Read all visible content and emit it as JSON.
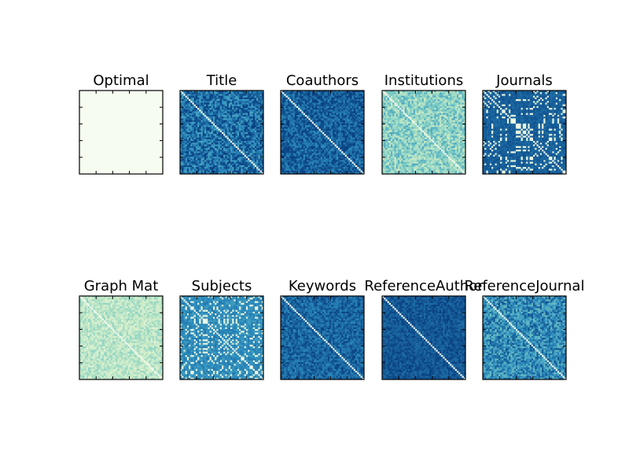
{
  "figure": {
    "background": "#ffffff",
    "colormap": "YlGnBu",
    "colormap_stops": [
      "#f7fcf0",
      "#ccebc5",
      "#7bccc4",
      "#2b8cbe",
      "#084081"
    ],
    "frame_color": "#000000"
  },
  "chart_data": [
    {
      "type": "heatmap",
      "title": "Optimal",
      "pattern": "uniform",
      "level": 0.0
    },
    {
      "type": "heatmap",
      "title": "Title",
      "pattern": "noise",
      "level": 0.85,
      "spread": 0.2
    },
    {
      "type": "heatmap",
      "title": "Coauthors",
      "pattern": "noise",
      "level": 0.9,
      "spread": 0.15
    },
    {
      "type": "heatmap",
      "title": "Institutions",
      "pattern": "noise",
      "level": 0.45,
      "spread": 0.2
    },
    {
      "type": "heatmap",
      "title": "Journals",
      "pattern": "block",
      "level": 0.9,
      "spread": 0.1
    },
    {
      "type": "heatmap",
      "title": "Graph Mat",
      "pattern": "noise",
      "level": 0.3,
      "spread": 0.15
    },
    {
      "type": "heatmap",
      "title": "Subjects",
      "pattern": "block",
      "level": 0.75,
      "spread": 0.15
    },
    {
      "type": "heatmap",
      "title": "Keywords",
      "pattern": "noise",
      "level": 0.88,
      "spread": 0.12
    },
    {
      "type": "heatmap",
      "title": "ReferenceAuthor",
      "pattern": "noise",
      "level": 0.93,
      "spread": 0.08
    },
    {
      "type": "heatmap",
      "title": "ReferenceJournal",
      "pattern": "noise",
      "level": 0.75,
      "spread": 0.2
    }
  ]
}
